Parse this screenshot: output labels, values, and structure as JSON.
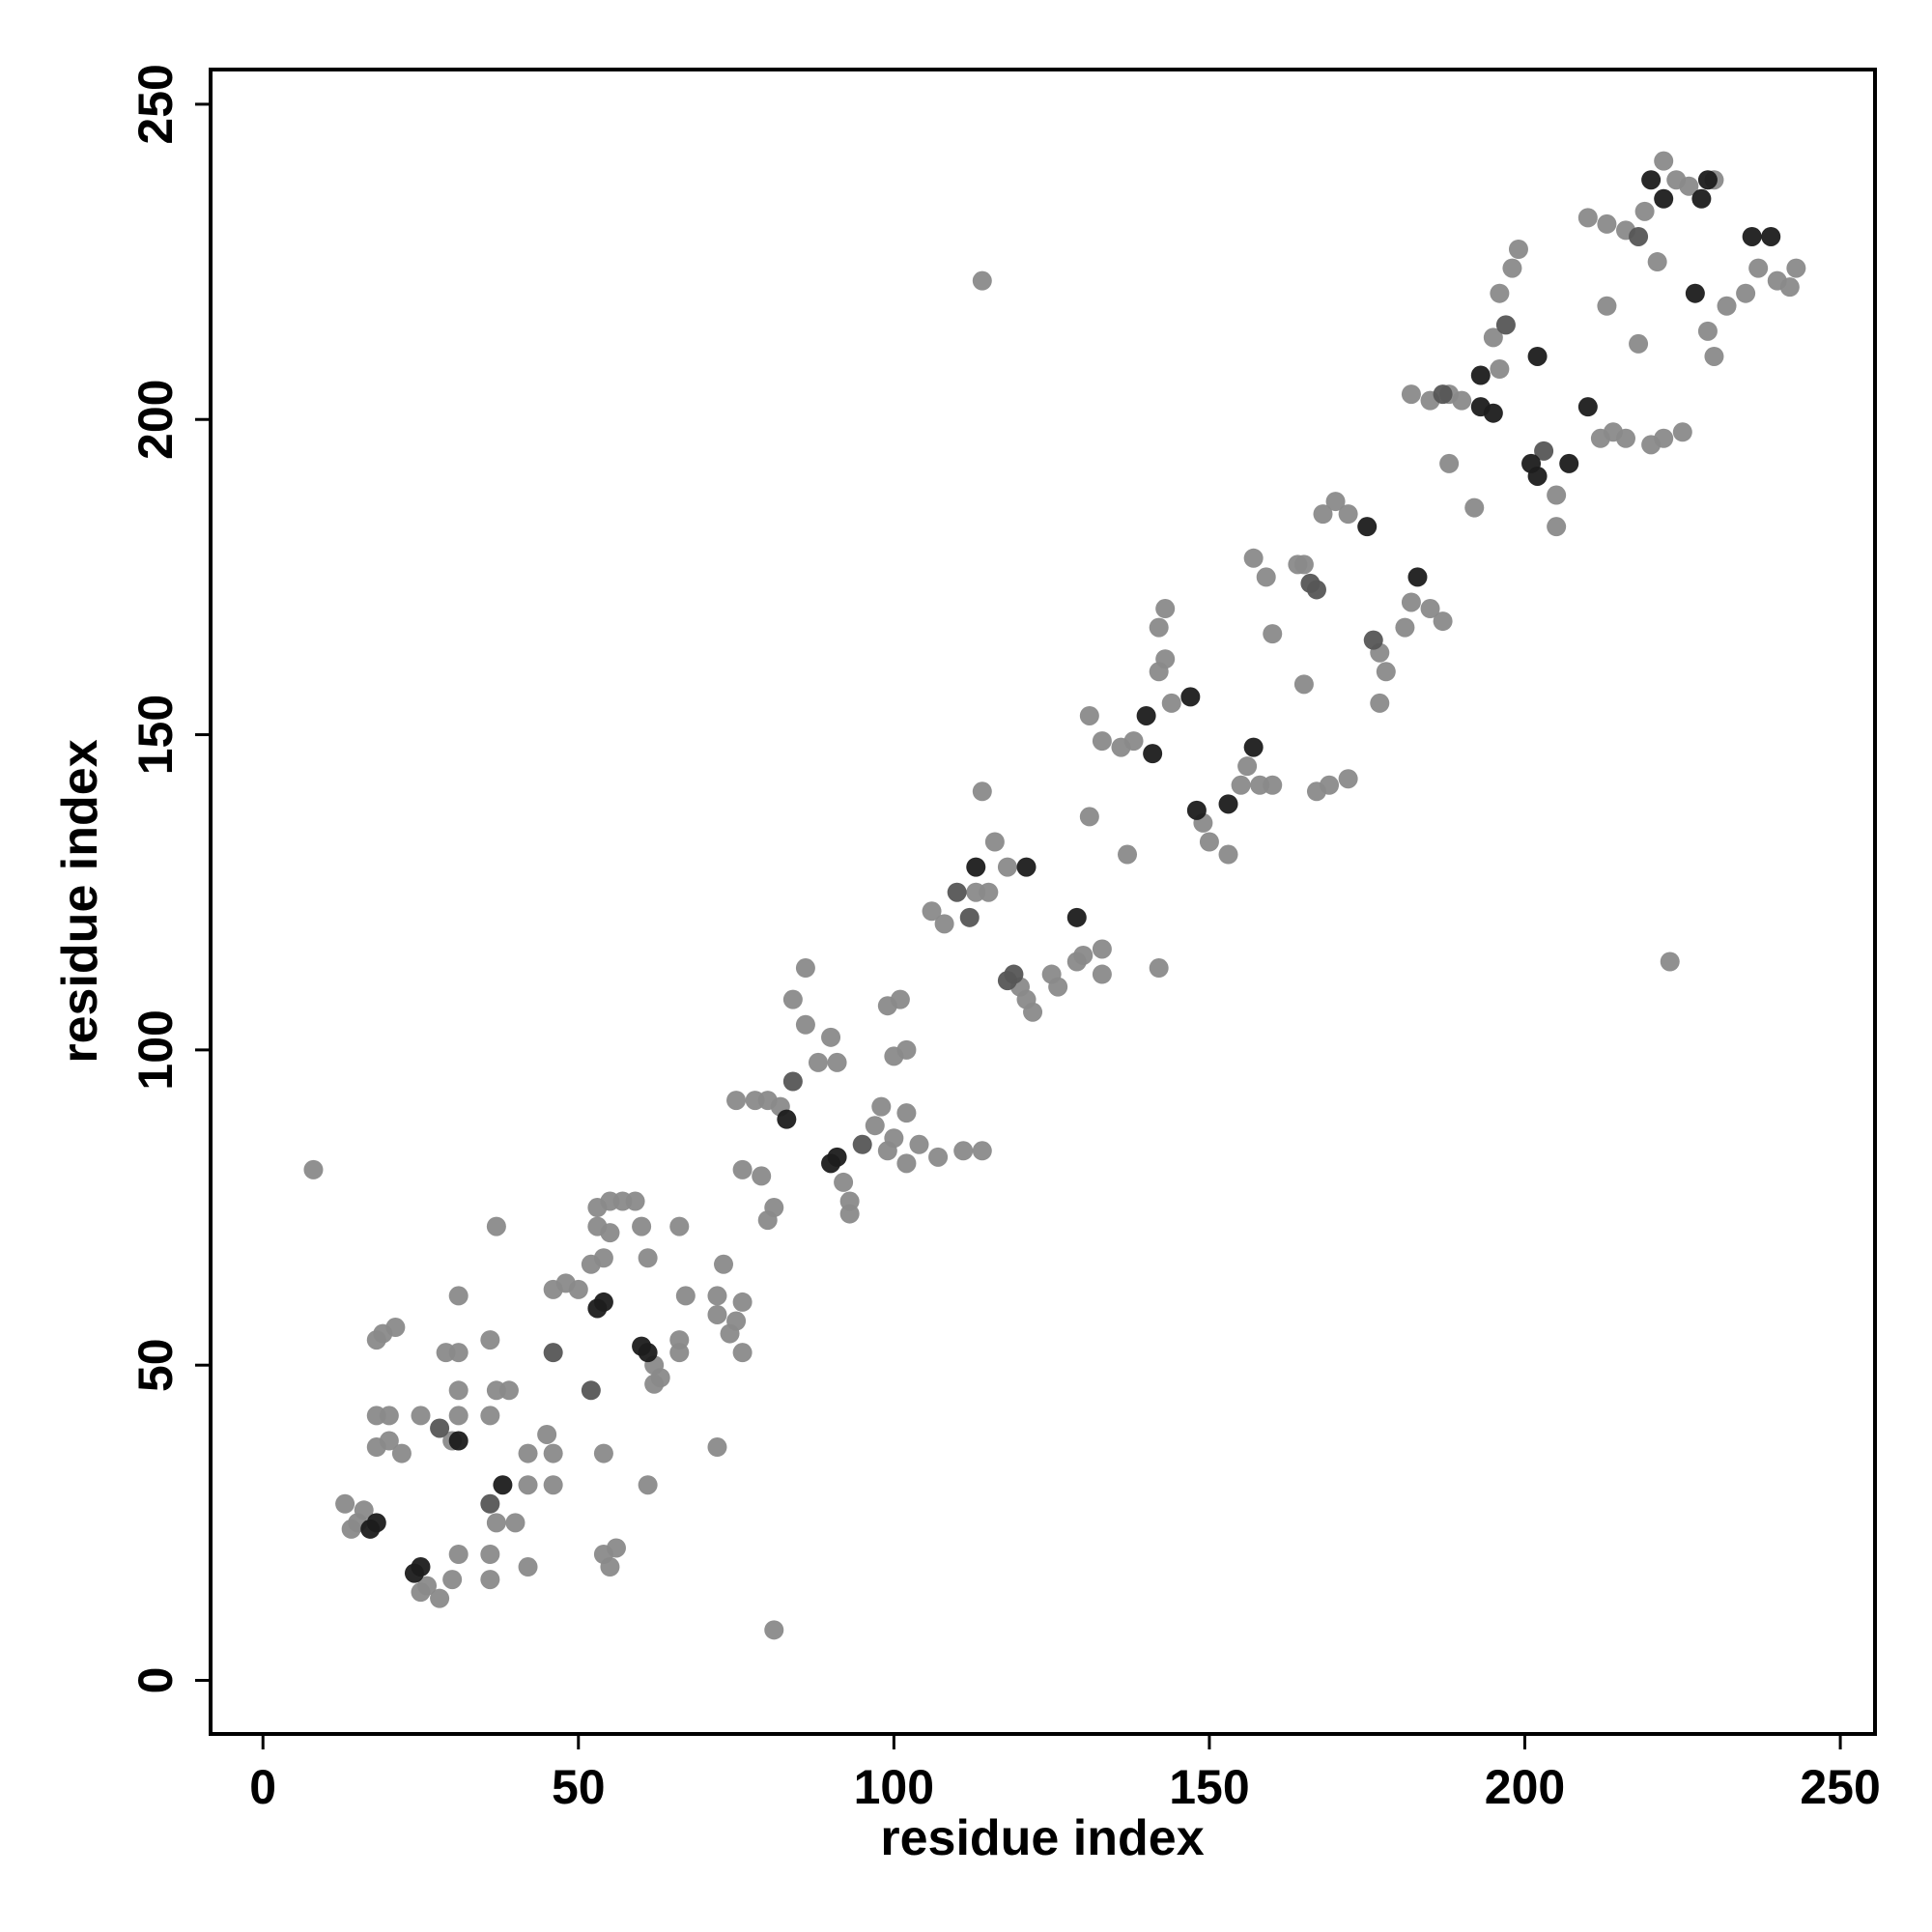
{
  "chart_data": {
    "type": "scatter",
    "xlabel": "residue index",
    "ylabel": "residue index",
    "xlim": [
      -8.3,
      255.5
    ],
    "ylim": [
      -8.5,
      255.5
    ],
    "xticks": [
      0,
      50,
      100,
      150,
      200,
      250
    ],
    "yticks": [
      0,
      50,
      100,
      150,
      200,
      250
    ],
    "grid": false,
    "series": [
      {
        "color": "#8a8a8a",
        "x": [
          8,
          81,
          114,
          223,
          15,
          16,
          13,
          14,
          26,
          28,
          30,
          25,
          18,
          18,
          20,
          19,
          21,
          18,
          20,
          22,
          30,
          25,
          31,
          31,
          31,
          29,
          31,
          31,
          37,
          36,
          40,
          42,
          36,
          36,
          37,
          37,
          39,
          36,
          42,
          42,
          45,
          46,
          46,
          46,
          48,
          50,
          53,
          55,
          57,
          59,
          60,
          53,
          55,
          52,
          54,
          54,
          54,
          55,
          56,
          62,
          63,
          62,
          61,
          61,
          66,
          66,
          66,
          67,
          72,
          72,
          73,
          72,
          74,
          75,
          76,
          76,
          79,
          76,
          81,
          80,
          75,
          78,
          80,
          82,
          86,
          84,
          86,
          88,
          91,
          90,
          92,
          93,
          93,
          97,
          98,
          99,
          100,
          102,
          102,
          104,
          107,
          111,
          114,
          100,
          102,
          99,
          101,
          106,
          108,
          116,
          118,
          114,
          113,
          115,
          120,
          121,
          122,
          125,
          126,
          129,
          130,
          133,
          133,
          131,
          131,
          133,
          136,
          138,
          137,
          142,
          142,
          143,
          143,
          142,
          144,
          149,
          150,
          153,
          155,
          156,
          158,
          160,
          160,
          159,
          165,
          164,
          168,
          170,
          172,
          157,
          165,
          167,
          169,
          172,
          177,
          177,
          178,
          181,
          182,
          185,
          187,
          182,
          185,
          188,
          190,
          195,
          196,
          196,
          198,
          199,
          188,
          192,
          205,
          205,
          212,
          214,
          216,
          220,
          222,
          225,
          210,
          213,
          216,
          219,
          222,
          224,
          226,
          230,
          221,
          213,
          218,
          229,
          230,
          232,
          235,
          237,
          240,
          242,
          243
        ],
        "y": [
          81,
          8,
          222,
          114,
          25,
          27,
          28,
          24,
          15,
          13,
          16,
          14,
          37,
          42,
          42,
          55,
          56,
          54,
          38,
          36,
          38,
          42,
          20,
          42,
          46,
          52,
          52,
          61,
          25,
          20,
          25,
          18,
          16,
          54,
          72,
          46,
          46,
          42,
          36,
          31,
          39,
          36,
          31,
          62,
          63,
          62,
          75,
          76,
          76,
          76,
          72,
          72,
          71,
          66,
          67,
          36,
          20,
          18,
          21,
          50,
          48,
          47,
          67,
          31,
          52,
          54,
          72,
          61,
          37,
          58,
          66,
          61,
          55,
          57,
          52,
          60,
          80,
          81,
          75,
          73,
          92,
          92,
          92,
          91,
          104,
          108,
          113,
          98,
          98,
          102,
          79,
          76,
          74,
          88,
          91,
          84,
          86,
          82,
          90,
          85,
          83,
          84,
          84,
          99,
          100,
          107,
          108,
          122,
          120,
          133,
          129,
          141,
          125,
          125,
          110,
          108,
          106,
          112,
          110,
          114,
          115,
          116,
          112,
          137,
          153,
          149,
          148,
          149,
          131,
          113,
          160,
          162,
          170,
          167,
          155,
          136,
          133,
          131,
          142,
          145,
          142,
          142,
          166,
          175,
          177,
          177,
          185,
          187,
          185,
          178,
          158,
          141,
          142,
          143,
          163,
          155,
          160,
          167,
          171,
          170,
          168,
          204,
          203,
          204,
          203,
          213,
          208,
          220,
          224,
          227,
          193,
          186,
          188,
          183,
          197,
          198,
          197,
          196,
          197,
          198,
          232,
          231,
          230,
          233,
          241,
          238,
          237,
          238,
          225,
          218,
          212,
          214,
          210,
          218,
          220,
          224,
          222,
          221,
          224
        ]
      },
      {
        "color": "#565656",
        "x": [
          52,
          46,
          36,
          28,
          118,
          112,
          110,
          119,
          95,
          84,
          167,
          166,
          176,
          187,
          197,
          203,
          218
        ],
        "y": [
          46,
          52,
          28,
          40,
          111,
          121,
          125,
          112,
          85,
          95,
          173,
          174,
          165,
          204,
          215,
          195,
          229
        ]
      },
      {
        "color": "#1c1c1c",
        "x": [
          17,
          18,
          24,
          25,
          31,
          38,
          53,
          54,
          60,
          61,
          83,
          90,
          91,
          113,
          121,
          129,
          140,
          141,
          147,
          148,
          153,
          157,
          175,
          183,
          193,
          195,
          193,
          202,
          201,
          202,
          207,
          210,
          229,
          228,
          220,
          236,
          239,
          227,
          222
        ],
        "y": [
          24,
          25,
          17,
          18,
          38,
          31,
          59,
          60,
          53,
          52,
          89,
          82,
          83,
          129,
          129,
          121,
          153,
          147,
          156,
          138,
          139,
          148,
          183,
          175,
          202,
          201,
          207,
          210,
          193,
          191,
          193,
          202,
          238,
          235,
          238,
          229,
          229,
          220,
          235
        ]
      }
    ]
  }
}
